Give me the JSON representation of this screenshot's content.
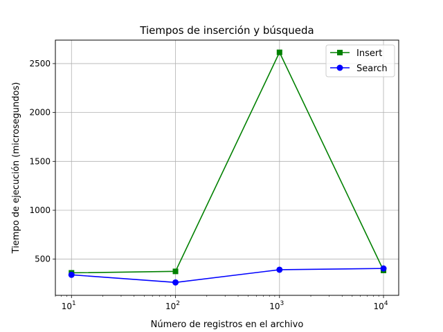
{
  "chart_data": {
    "type": "line",
    "title": "Tiempos de inserción y búsqueda",
    "xlabel": "Número de registros en el archivo",
    "ylabel": "Tiempo de ejecución (microsegundos)",
    "x_scale": "log",
    "xlim": [
      7,
      14000
    ],
    "ylim": [
      130,
      2740
    ],
    "x": [
      10,
      100,
      1000,
      10000
    ],
    "x_ticks": [
      10,
      100,
      1000,
      10000
    ],
    "y_ticks": [
      500,
      1000,
      1500,
      2000,
      2500
    ],
    "grid": true,
    "legend_position": "top-right",
    "series": [
      {
        "name": "Insert",
        "color": "#008000",
        "marker": "square",
        "values": [
          360,
          375,
          2615,
          385
        ]
      },
      {
        "name": "Search",
        "color": "#0000ff",
        "marker": "circle",
        "values": [
          340,
          262,
          392,
          405
        ]
      }
    ]
  }
}
